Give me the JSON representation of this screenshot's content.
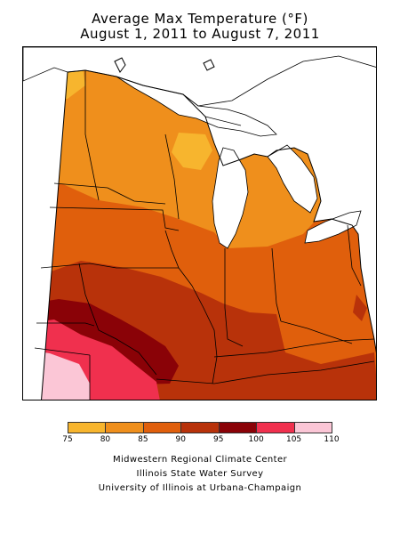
{
  "title": {
    "line1": "Average Max Temperature (°F)",
    "line2": "August 1, 2011 to August 7, 2011"
  },
  "legend": {
    "ticks": [
      "75",
      "80",
      "85",
      "90",
      "95",
      "100",
      "105",
      "110"
    ],
    "colors": [
      "#f7b52e",
      "#ef8f1c",
      "#e05f0c",
      "#b8320a",
      "#8a0207",
      "#f0304e",
      "#fbc6d6"
    ]
  },
  "map": {
    "region": "Midwest",
    "colors": {
      "c75_80": "#f7b52e",
      "c80_85": "#ef8f1c",
      "c85_90": "#e05f0c",
      "c90_95": "#b8320a",
      "c95_100": "#8a0207",
      "c100_105": "#f0304e",
      "c105_110": "#fbc6d6",
      "water": "#ffffff",
      "boundary": "#000000"
    }
  },
  "credits": {
    "line1": "Midwestern Regional Climate Center",
    "line2": "Illinois State Water Survey",
    "line3": "University of Illinois at Urbana-Champaign"
  }
}
